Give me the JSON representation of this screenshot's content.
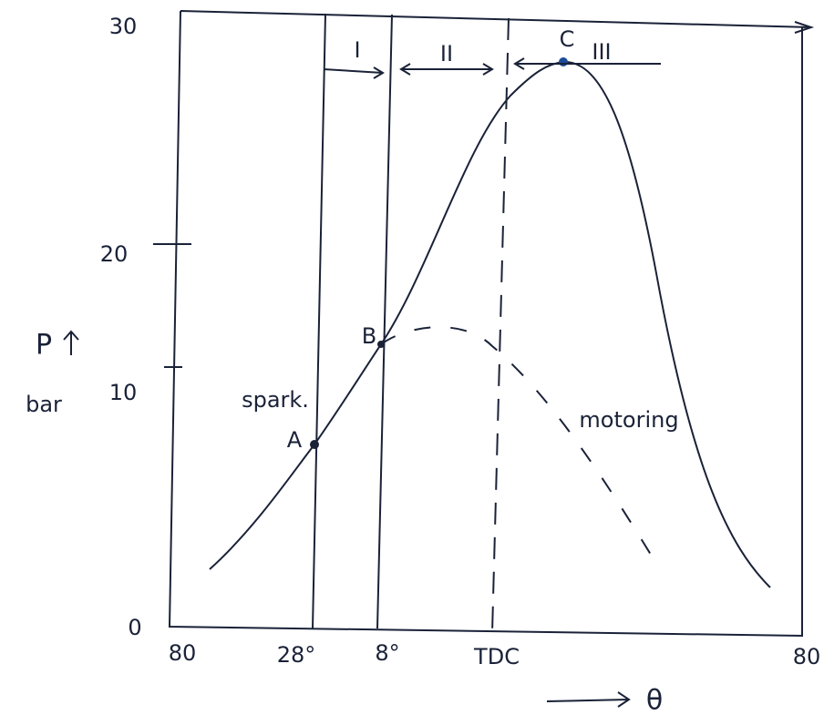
{
  "y_axis": {
    "label": "P",
    "unit": "bar",
    "ticks": [
      "30",
      "20",
      "10",
      "0"
    ]
  },
  "x_axis": {
    "label": "θ",
    "ticks": [
      "80",
      "28°",
      "8°",
      "TDC",
      "80"
    ]
  },
  "points": [
    {
      "label": "A",
      "note": "spark."
    },
    {
      "label": "B"
    },
    {
      "label": "C"
    }
  ],
  "phases": [
    "I",
    "II",
    "III"
  ],
  "curves": {
    "motoring": "motoring"
  }
}
